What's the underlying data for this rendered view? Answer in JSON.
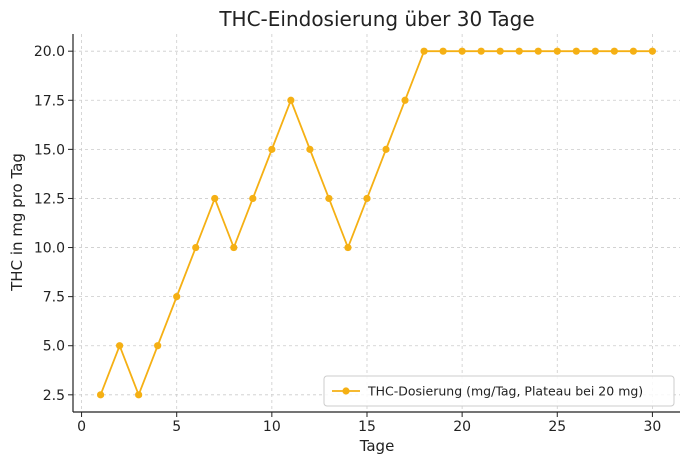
{
  "chart_data": {
    "type": "line",
    "title": "THC-Eindosierung über 30 Tage",
    "x_label": "Tage",
    "y_label": "THC in mg pro Tag",
    "x": [
      1,
      2,
      3,
      4,
      5,
      6,
      7,
      8,
      9,
      10,
      11,
      12,
      13,
      14,
      15,
      16,
      17,
      18,
      19,
      20,
      21,
      22,
      23,
      24,
      25,
      26,
      27,
      28,
      29,
      30
    ],
    "series": [
      {
        "name": "THC-Dosierung (mg/Tag, Plateau bei 20 mg)",
        "color": "#f5b014",
        "values": [
          2.5,
          5,
          2.5,
          5,
          7.5,
          10,
          12.5,
          10,
          12.5,
          15,
          17.5,
          15,
          12.5,
          10,
          12.5,
          15,
          17.5,
          20,
          20,
          20,
          20,
          20,
          20,
          20,
          20,
          20,
          20,
          20,
          20,
          20
        ]
      }
    ],
    "xlim": [
      -0.45,
      31.45
    ],
    "xticks": [
      0,
      5,
      10,
      15,
      20,
      25,
      30
    ],
    "ylim": [
      1.625,
      20.875
    ],
    "yticks": [
      2.5,
      {
        "value": 5,
        "label": "5.0"
      },
      7.5,
      {
        "value": 10,
        "label": "10.0"
      },
      12.5,
      {
        "value": 15,
        "label": "15.0"
      },
      17.5,
      {
        "value": 20,
        "label": "20.0"
      }
    ],
    "grid": true,
    "legend": "lower right"
  }
}
